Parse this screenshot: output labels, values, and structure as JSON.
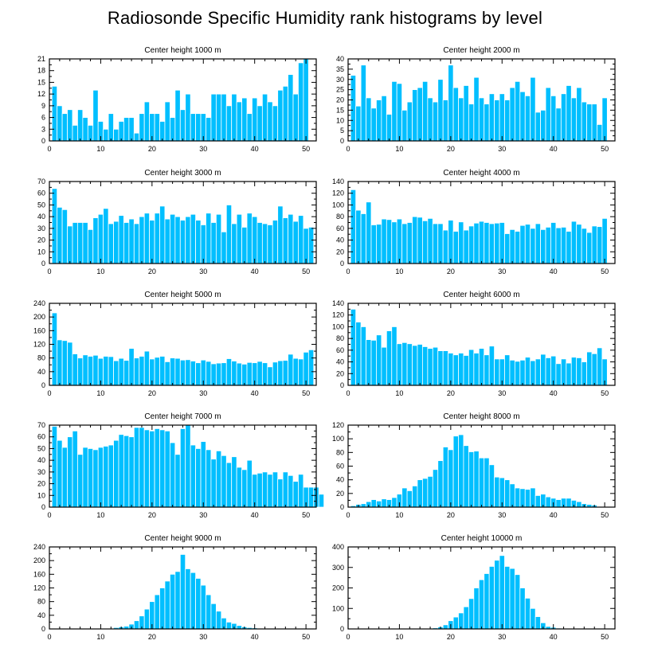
{
  "title": "Radiosonde Specific Humidity rank histograms by level",
  "colors": {
    "bar": "#00BFFF",
    "bar_stroke": "#FFFFFF",
    "axis": "#000000",
    "background": "#FFFFFF"
  },
  "chart_data": [
    {
      "type": "bar",
      "title": "Center height 1000 m",
      "xlim": [
        0,
        52
      ],
      "x_ticks": [
        0,
        10,
        20,
        30,
        40,
        50
      ],
      "ylim": [
        0,
        21
      ],
      "y_ticks": [
        0,
        3,
        6,
        9,
        12,
        15,
        18,
        21
      ],
      "values": [
        14,
        9,
        7,
        8,
        4,
        8,
        6,
        4,
        13,
        5,
        3,
        7,
        3,
        5,
        6,
        6,
        2,
        7,
        10,
        7,
        7,
        5,
        10,
        6,
        13,
        8,
        12,
        7,
        7,
        7,
        6,
        12,
        12,
        12,
        9,
        12,
        10,
        11,
        7,
        11,
        9,
        12,
        10,
        9,
        13,
        14,
        17,
        12,
        20,
        21
      ]
    },
    {
      "type": "bar",
      "title": "Center height 2000 m",
      "xlim": [
        0,
        52
      ],
      "x_ticks": [
        0,
        10,
        20,
        30,
        40,
        50
      ],
      "ylim": [
        0,
        40
      ],
      "y_ticks": [
        0,
        5,
        10,
        15,
        20,
        25,
        30,
        35,
        40
      ],
      "values": [
        32,
        17,
        37,
        21,
        16,
        20,
        22,
        13,
        29,
        28,
        15,
        19,
        25,
        26,
        29,
        21,
        19,
        30,
        20,
        37,
        26,
        21,
        27,
        18,
        31,
        21,
        18,
        23,
        20,
        23,
        20,
        26,
        29,
        24,
        22,
        31,
        14,
        15,
        26,
        22,
        16,
        23,
        27,
        21,
        26,
        19,
        18,
        18,
        8,
        21
      ]
    },
    {
      "type": "bar",
      "title": "Center height 3000 m",
      "xlim": [
        0,
        52
      ],
      "x_ticks": [
        0,
        10,
        20,
        30,
        40,
        50
      ],
      "ylim": [
        0,
        70
      ],
      "y_ticks": [
        0,
        10,
        20,
        30,
        40,
        50,
        60,
        70
      ],
      "values": [
        64,
        48,
        46,
        32,
        35,
        35,
        35,
        29,
        39,
        42,
        47,
        34,
        36,
        41,
        35,
        38,
        34,
        40,
        43,
        37,
        43,
        49,
        38,
        42,
        40,
        37,
        40,
        42,
        37,
        33,
        43,
        35,
        42,
        27,
        50,
        34,
        42,
        31,
        43,
        40,
        35,
        34,
        33,
        37,
        49,
        39,
        42,
        36,
        41,
        30,
        31
      ]
    },
    {
      "type": "bar",
      "title": "Center height 4000 m",
      "xlim": [
        0,
        52
      ],
      "x_ticks": [
        0,
        10,
        20,
        30,
        40,
        50
      ],
      "ylim": [
        0,
        140
      ],
      "y_ticks": [
        0,
        20,
        40,
        60,
        80,
        100,
        120,
        140
      ],
      "values": [
        126,
        91,
        85,
        105,
        66,
        67,
        76,
        75,
        71,
        76,
        68,
        70,
        80,
        79,
        73,
        77,
        68,
        68,
        57,
        74,
        55,
        71,
        57,
        64,
        69,
        72,
        70,
        68,
        69,
        70,
        51,
        58,
        55,
        65,
        67,
        60,
        68,
        58,
        62,
        70,
        61,
        62,
        55,
        72,
        67,
        60,
        53,
        64,
        63,
        77
      ]
    },
    {
      "type": "bar",
      "title": "Center height 5000 m",
      "xlim": [
        0,
        52
      ],
      "x_ticks": [
        0,
        10,
        20,
        30,
        40,
        50
      ],
      "ylim": [
        0,
        240
      ],
      "y_ticks": [
        0,
        40,
        80,
        120,
        160,
        200,
        240
      ],
      "values": [
        212,
        133,
        131,
        126,
        92,
        80,
        89,
        85,
        88,
        79,
        85,
        84,
        72,
        79,
        73,
        108,
        80,
        85,
        100,
        77,
        82,
        85,
        69,
        80,
        79,
        74,
        75,
        71,
        66,
        74,
        70,
        63,
        65,
        66,
        78,
        71,
        65,
        62,
        67,
        66,
        70,
        66,
        54,
        68,
        72,
        73,
        91,
        79,
        77,
        97,
        104
      ]
    },
    {
      "type": "bar",
      "title": "Center height 6000 m",
      "xlim": [
        0,
        52
      ],
      "x_ticks": [
        0,
        10,
        20,
        30,
        40,
        50
      ],
      "ylim": [
        0,
        140
      ],
      "y_ticks": [
        0,
        20,
        40,
        60,
        80,
        100,
        120,
        140
      ],
      "values": [
        130,
        108,
        100,
        78,
        77,
        86,
        65,
        93,
        100,
        71,
        73,
        71,
        68,
        70,
        66,
        63,
        65,
        59,
        59,
        55,
        52,
        55,
        51,
        61,
        55,
        63,
        52,
        67,
        45,
        45,
        52,
        43,
        41,
        43,
        48,
        42,
        45,
        53,
        47,
        50,
        37,
        45,
        38,
        48,
        47,
        40,
        57,
        54,
        64,
        45
      ]
    },
    {
      "type": "bar",
      "title": "Center height 7000 m",
      "xlim": [
        0,
        52
      ],
      "x_ticks": [
        0,
        10,
        20,
        30,
        40,
        50
      ],
      "ylim": [
        0,
        70
      ],
      "y_ticks": [
        0,
        10,
        20,
        30,
        40,
        50,
        60,
        70
      ],
      "values": [
        69,
        57,
        51,
        60,
        65,
        45,
        51,
        50,
        49,
        51,
        52,
        53,
        57,
        62,
        61,
        60,
        68,
        68,
        66,
        65,
        67,
        66,
        65,
        55,
        45,
        67,
        70,
        53,
        50,
        56,
        49,
        41,
        48,
        44,
        38,
        43,
        34,
        32,
        40,
        28,
        29,
        30,
        28,
        30,
        24,
        30,
        27,
        22,
        28,
        17,
        17,
        17,
        11
      ]
    },
    {
      "type": "bar",
      "title": "Center height 8000 m",
      "xlim": [
        0,
        52
      ],
      "x_ticks": [
        0,
        10,
        20,
        30,
        40,
        50
      ],
      "ylim": [
        0,
        120
      ],
      "y_ticks": [
        0,
        20,
        40,
        60,
        80,
        100,
        120
      ],
      "values": [
        2,
        4,
        5,
        8,
        11,
        9,
        12,
        11,
        14,
        19,
        28,
        24,
        31,
        40,
        42,
        45,
        55,
        68,
        88,
        84,
        104,
        106,
        90,
        81,
        82,
        72,
        72,
        62,
        44,
        43,
        40,
        34,
        28,
        27,
        26,
        28,
        17,
        19,
        15,
        13,
        11,
        13,
        13,
        10,
        8,
        5,
        4,
        3
      ]
    },
    {
      "type": "bar",
      "title": "Center height 9000 m",
      "xlim": [
        0,
        52
      ],
      "x_ticks": [
        0,
        10,
        20,
        30,
        40,
        50
      ],
      "ylim": [
        0,
        240
      ],
      "y_ticks": [
        0,
        40,
        80,
        120,
        160,
        200,
        240
      ],
      "values": [
        0,
        0,
        0,
        0,
        0,
        0,
        0,
        0,
        0,
        0,
        0,
        2,
        4,
        6,
        8,
        14,
        24,
        38,
        58,
        80,
        100,
        120,
        140,
        160,
        168,
        218,
        176,
        165,
        148,
        128,
        100,
        74,
        52,
        32,
        20,
        16,
        10,
        6,
        4,
        3,
        2,
        2,
        2,
        1,
        1,
        1,
        1,
        1,
        0,
        0
      ]
    },
    {
      "type": "bar",
      "title": "Center height 10000 m",
      "xlim": [
        0,
        52
      ],
      "x_ticks": [
        0,
        10,
        20,
        30,
        40,
        50
      ],
      "ylim": [
        0,
        400
      ],
      "y_ticks": [
        0,
        100,
        200,
        300,
        400
      ],
      "values": [
        0,
        0,
        0,
        0,
        0,
        0,
        0,
        0,
        0,
        0,
        0,
        0,
        0,
        0,
        2,
        2,
        5,
        10,
        20,
        40,
        58,
        78,
        108,
        148,
        200,
        240,
        270,
        305,
        335,
        358,
        305,
        295,
        265,
        200,
        150,
        100,
        60,
        30,
        12,
        8,
        4,
        2,
        2,
        1,
        1,
        1,
        0,
        0,
        0,
        0
      ]
    }
  ]
}
